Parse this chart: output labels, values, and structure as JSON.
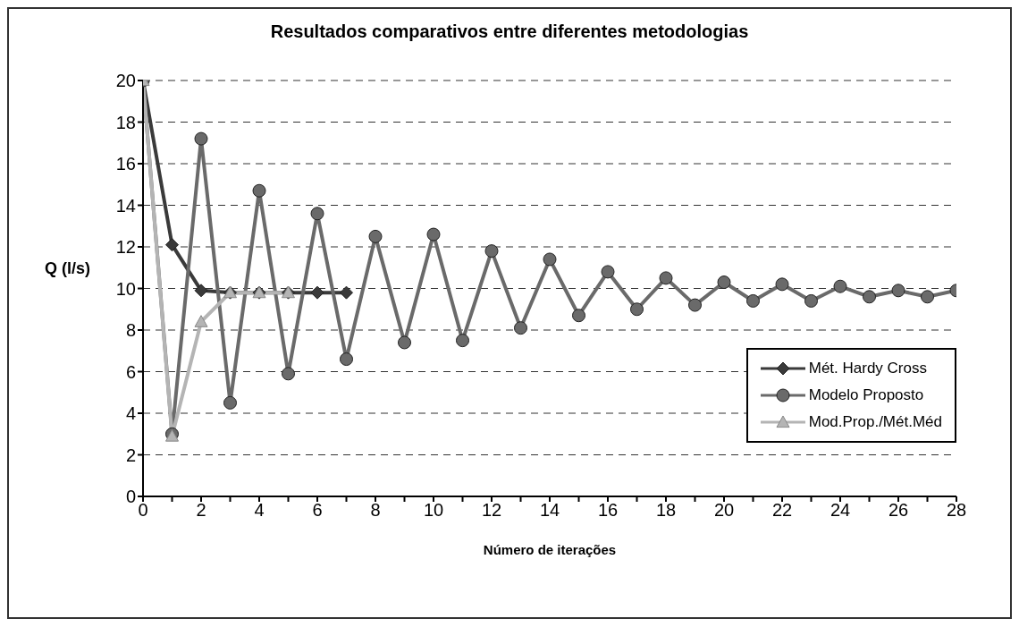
{
  "chart_data": {
    "type": "line",
    "title": "Resultados comparativos entre diferentes metodologias",
    "xlabel": "Número de iterações",
    "ylabel": "Q (l/s)",
    "xlim": [
      0,
      28
    ],
    "xticks": [
      0,
      {
        "value": 1,
        "label": null
      },
      2,
      {
        "value": 3,
        "label": null
      },
      4,
      {
        "value": 5,
        "label": null
      },
      6,
      {
        "value": 7,
        "label": null
      },
      8,
      {
        "value": 9,
        "label": null
      },
      10,
      {
        "value": 11,
        "label": null
      },
      12,
      {
        "value": 13,
        "label": null
      },
      14,
      {
        "value": 15,
        "label": null
      },
      16,
      {
        "value": 17,
        "label": null
      },
      18,
      {
        "value": 19,
        "label": null
      },
      20,
      {
        "value": 21,
        "label": null
      },
      22,
      {
        "value": 23,
        "label": null
      },
      24,
      {
        "value": 25,
        "label": null
      },
      26,
      {
        "value": 27,
        "label": null
      },
      28
    ],
    "ylim": [
      0,
      20
    ],
    "yticks": [
      0,
      2,
      4,
      6,
      8,
      10,
      12,
      14,
      16,
      18,
      20
    ],
    "grid": "y",
    "legend": "bottom right",
    "line_style": "solid",
    "series": [
      {
        "name": "Mét. Hardy Cross",
        "color": "#3a3a3a",
        "marker": "diamond",
        "x": [
          0,
          1,
          2,
          3,
          4,
          5,
          6,
          7
        ],
        "values": [
          20,
          12.1,
          9.9,
          9.8,
          9.8,
          9.8,
          9.8,
          9.8
        ]
      },
      {
        "name": "Modelo Proposto",
        "color": "#6a6a6a",
        "marker": "circle",
        "x": [
          0,
          1,
          2,
          3,
          4,
          5,
          6,
          7,
          8,
          9,
          10,
          11,
          12,
          13,
          14,
          15,
          16,
          17,
          18,
          19,
          20,
          21,
          22,
          23,
          24,
          25,
          26,
          27,
          28
        ],
        "values": [
          20,
          3.0,
          17.2,
          4.5,
          14.7,
          5.9,
          13.6,
          6.6,
          12.5,
          7.4,
          12.6,
          7.5,
          11.8,
          8.1,
          11.4,
          8.7,
          10.8,
          9.0,
          10.5,
          9.2,
          10.3,
          9.4,
          10.2,
          9.4,
          10.1,
          9.6,
          9.9,
          9.6,
          9.9
        ]
      },
      {
        "name": "Mod.Prop./Mét.Méd",
        "color": "#b4b4b4",
        "marker": "triangle",
        "x": [
          0,
          1,
          2,
          3,
          4,
          5
        ],
        "values": [
          20,
          2.9,
          8.4,
          9.8,
          9.8,
          9.8
        ]
      }
    ]
  }
}
